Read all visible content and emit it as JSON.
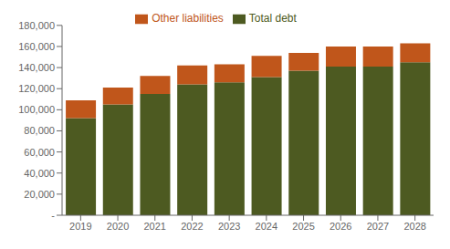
{
  "chart_data": {
    "type": "bar",
    "stacked": true,
    "grid": false,
    "legend": "top",
    "categories": [
      "2019",
      "2020",
      "2021",
      "2022",
      "2023",
      "2024",
      "2025",
      "2026",
      "2027",
      "2028"
    ],
    "series": [
      {
        "name": "Total debt",
        "color": "#4d5a21",
        "values": [
          92000,
          105000,
          115000,
          124000,
          126000,
          131000,
          137000,
          141000,
          141000,
          145000
        ]
      },
      {
        "name": "Other liabilities",
        "color": "#c0561b",
        "values": [
          17000,
          16000,
          17000,
          18000,
          17000,
          20000,
          17000,
          19000,
          19000,
          18000
        ]
      }
    ],
    "ylim": [
      0,
      180000
    ],
    "yticks": [
      {
        "value": 0,
        "label": "-"
      },
      {
        "value": 20000,
        "label": "20,000"
      },
      {
        "value": 40000,
        "label": "40,000"
      },
      {
        "value": 60000,
        "label": "60,000"
      },
      {
        "value": 80000,
        "label": "80,000"
      },
      {
        "value": 100000,
        "label": "100,000"
      },
      {
        "value": 120000,
        "label": "120,000"
      },
      {
        "value": 140000,
        "label": "140,000"
      },
      {
        "value": 160000,
        "label": "160,000"
      },
      {
        "value": 180000,
        "label": "180,000"
      }
    ]
  }
}
